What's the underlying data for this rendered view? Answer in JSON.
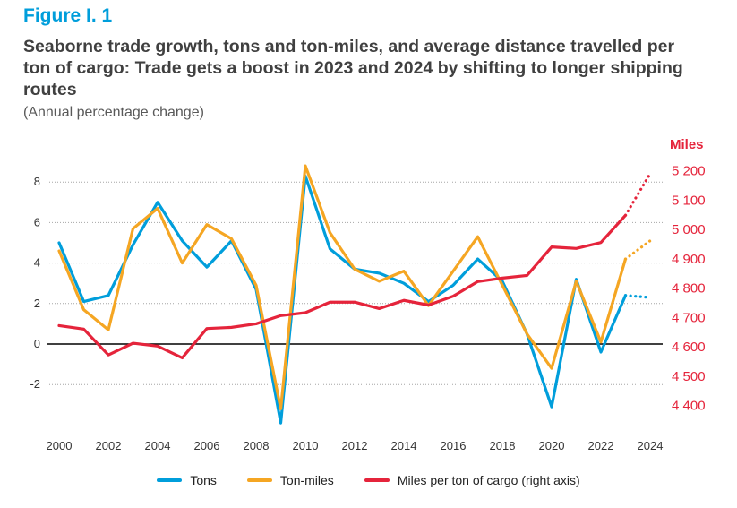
{
  "figure": {
    "label": "Figure I. 1",
    "title": "Seaborne trade growth, tons and ton-miles, and average distance travelled per ton of cargo: Trade gets a boost in 2023 and 2024 by shifting to longer shipping routes",
    "subtitle": "(Annual percentage change)"
  },
  "colors": {
    "tons": "#009edb",
    "ton_miles": "#f5a623",
    "miles": "#e5243b",
    "zero_line": "#000000",
    "grid": "#a6a6a6"
  },
  "chart_data": {
    "type": "line",
    "title": "Seaborne trade growth, tons and ton-miles, and average distance travelled per ton of cargo",
    "x": [
      2000,
      2001,
      2002,
      2003,
      2004,
      2005,
      2006,
      2007,
      2008,
      2009,
      2010,
      2011,
      2012,
      2013,
      2014,
      2015,
      2016,
      2017,
      2018,
      2019,
      2020,
      2021,
      2022,
      2023,
      2024
    ],
    "x_ticks": [
      "2000",
      "2002",
      "2004",
      "2006",
      "2008",
      "2010",
      "2012",
      "2014",
      "2016",
      "2018",
      "2020",
      "2022",
      "2024"
    ],
    "xlim": [
      2000,
      2024
    ],
    "left_axis": {
      "ylim": [
        -4,
        9.5
      ],
      "ticks": [
        "8",
        "6",
        "4",
        "2",
        "0",
        "-2"
      ]
    },
    "right_axis": {
      "label": "Miles",
      "ylim": [
        4310,
        5300
      ],
      "ticks": [
        "5 200",
        "5 100",
        "5 000",
        "4 900",
        "4 800",
        "4 700",
        "4 600",
        "4 500",
        "4 400"
      ]
    },
    "series": [
      {
        "name": "Tons",
        "axis": "left",
        "values": [
          5.0,
          2.1,
          2.4,
          4.9,
          7.0,
          5.1,
          3.8,
          5.1,
          2.7,
          -3.9,
          8.3,
          4.7,
          3.7,
          3.5,
          3.0,
          2.1,
          2.9,
          4.2,
          3.1,
          0.5,
          -3.1,
          3.2,
          -0.4,
          2.4,
          2.3
        ],
        "dotted_from": 2023
      },
      {
        "name": "Ton-miles",
        "axis": "left",
        "values": [
          4.6,
          1.7,
          0.7,
          5.7,
          6.7,
          4.0,
          5.9,
          5.2,
          2.9,
          -3.2,
          8.8,
          5.5,
          3.7,
          3.1,
          3.6,
          1.9,
          3.6,
          5.3,
          2.9,
          0.5,
          -1.2,
          3.1,
          0.1,
          4.2,
          5.1
        ],
        "dotted_from": 2023
      },
      {
        "name": "Miles per ton of cargo (right axis)",
        "axis": "right",
        "values": [
          4672,
          4660,
          4572,
          4612,
          4602,
          4562,
          4662,
          4666,
          4678,
          4706,
          4716,
          4752,
          4752,
          4730,
          4758,
          4742,
          4772,
          4822,
          4834,
          4843,
          4940,
          4935,
          4955,
          5048,
          5190
        ],
        "dotted_from": 2023
      }
    ]
  },
  "legend": {
    "tons": "Tons",
    "ton_miles": "Ton-miles",
    "miles": "Miles per ton of cargo (right axis)"
  }
}
